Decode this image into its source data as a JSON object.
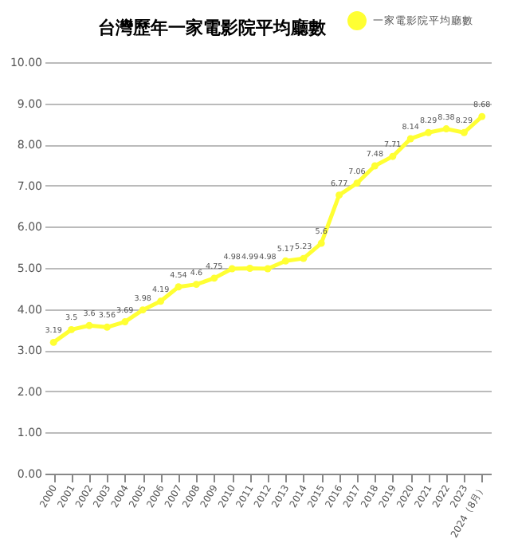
{
  "chart_data": {
    "type": "line",
    "title": "台灣歷年一家電影院平均廳數",
    "categories": [
      "2000",
      "2001",
      "2002",
      "2003",
      "2004",
      "2005",
      "2006",
      "2007",
      "2008",
      "2009",
      "2010",
      "2011",
      "2012",
      "2013",
      "2014",
      "2015",
      "2016",
      "2017",
      "2018",
      "2019",
      "2020",
      "2021",
      "2022",
      "2023",
      "2024（8月）"
    ],
    "series": [
      {
        "name": "一家電影院平均廳數",
        "color": "#ffff33",
        "values": [
          3.19,
          3.5,
          3.6,
          3.56,
          3.69,
          3.98,
          4.19,
          4.54,
          4.6,
          4.75,
          4.98,
          4.99,
          4.98,
          5.17,
          5.23,
          5.6,
          6.77,
          7.06,
          7.48,
          7.71,
          8.14,
          8.29,
          8.38,
          8.29,
          8.68
        ]
      }
    ],
    "ylim": [
      0,
      10
    ],
    "yticks": [
      {
        "value": 0,
        "label": "0.00"
      },
      {
        "value": 1,
        "label": "1.00"
      },
      {
        "value": 2,
        "label": "2.00"
      },
      {
        "value": 3,
        "label": "3.00"
      },
      {
        "value": 4,
        "label": "4.00"
      },
      {
        "value": 5,
        "label": "5.00"
      },
      {
        "value": 6,
        "label": "6.00"
      },
      {
        "value": 7,
        "label": "7.00"
      },
      {
        "value": 8,
        "label": "8.00"
      },
      {
        "value": 9,
        "label": "9.00"
      },
      {
        "value": 10,
        "label": "10.00"
      }
    ],
    "grid": "y",
    "legend": "top right",
    "marker": "circle",
    "line_style": "solid",
    "data_labels": true
  }
}
